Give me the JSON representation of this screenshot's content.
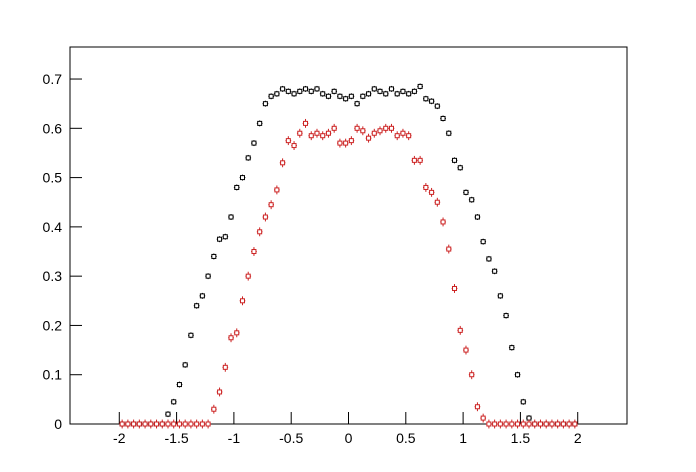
{
  "chart_data": {
    "type": "scatter",
    "xlim": [
      -2.43,
      2.43
    ],
    "ylim": [
      0,
      0.765
    ],
    "xticks": [
      -2,
      -1.5,
      -1,
      -0.5,
      0,
      0.5,
      1,
      1.5,
      2
    ],
    "yticks": [
      0,
      0.1,
      0.2,
      0.3,
      0.4,
      0.5,
      0.6,
      0.7
    ],
    "x": [
      -1.975,
      -1.925,
      -1.875,
      -1.825,
      -1.775,
      -1.725,
      -1.675,
      -1.625,
      -1.575,
      -1.525,
      -1.475,
      -1.425,
      -1.375,
      -1.325,
      -1.275,
      -1.225,
      -1.175,
      -1.125,
      -1.075,
      -1.025,
      -0.975,
      -0.925,
      -0.875,
      -0.825,
      -0.775,
      -0.725,
      -0.675,
      -0.625,
      -0.575,
      -0.525,
      -0.475,
      -0.425,
      -0.375,
      -0.325,
      -0.275,
      -0.225,
      -0.175,
      -0.125,
      -0.075,
      -0.025,
      0.025,
      0.075,
      0.125,
      0.175,
      0.225,
      0.275,
      0.325,
      0.375,
      0.425,
      0.475,
      0.525,
      0.575,
      0.625,
      0.675,
      0.725,
      0.775,
      0.825,
      0.875,
      0.925,
      0.975,
      1.025,
      1.075,
      1.125,
      1.175,
      1.225,
      1.275,
      1.325,
      1.375,
      1.425,
      1.475,
      1.525,
      1.575,
      1.625,
      1.675,
      1.725,
      1.775,
      1.825,
      1.875,
      1.925,
      1.975
    ],
    "series": [
      {
        "color": "#000000",
        "error": 0.006,
        "values": [
          0,
          0,
          0,
          0,
          0,
          0,
          0,
          0,
          0.02,
          0.045,
          0.08,
          0.12,
          0.18,
          0.24,
          0.26,
          0.3,
          0.34,
          0.375,
          0.38,
          0.42,
          0.48,
          0.5,
          0.54,
          0.57,
          0.61,
          0.65,
          0.665,
          0.67,
          0.68,
          0.675,
          0.67,
          0.675,
          0.68,
          0.675,
          0.68,
          0.67,
          0.665,
          0.675,
          0.665,
          0.66,
          0.665,
          0.65,
          0.665,
          0.67,
          0.68,
          0.675,
          0.67,
          0.68,
          0.67,
          0.675,
          0.67,
          0.675,
          0.685,
          0.66,
          0.655,
          0.645,
          0.62,
          0.59,
          0.535,
          0.52,
          0.47,
          0.455,
          0.42,
          0.37,
          0.335,
          0.31,
          0.26,
          0.22,
          0.155,
          0.1,
          0.045,
          0.012,
          0,
          0,
          0,
          0,
          0,
          0,
          0,
          0
        ]
      },
      {
        "color": "#cc2222",
        "error": 0.009,
        "values": [
          0,
          0,
          0,
          0,
          0,
          0,
          0,
          0,
          0,
          0,
          0,
          0,
          0,
          0,
          0,
          0,
          0.03,
          0.065,
          0.115,
          0.175,
          0.185,
          0.25,
          0.3,
          0.35,
          0.39,
          0.42,
          0.445,
          0.475,
          0.53,
          0.575,
          0.565,
          0.59,
          0.61,
          0.585,
          0.59,
          0.585,
          0.59,
          0.6,
          0.57,
          0.57,
          0.575,
          0.6,
          0.595,
          0.58,
          0.59,
          0.595,
          0.6,
          0.6,
          0.585,
          0.59,
          0.585,
          0.535,
          0.535,
          0.48,
          0.47,
          0.45,
          0.41,
          0.355,
          0.275,
          0.19,
          0.15,
          0.1,
          0.035,
          0.012,
          0,
          0,
          0,
          0,
          0,
          0,
          0,
          0,
          0,
          0,
          0,
          0,
          0,
          0,
          0,
          0
        ]
      }
    ]
  }
}
